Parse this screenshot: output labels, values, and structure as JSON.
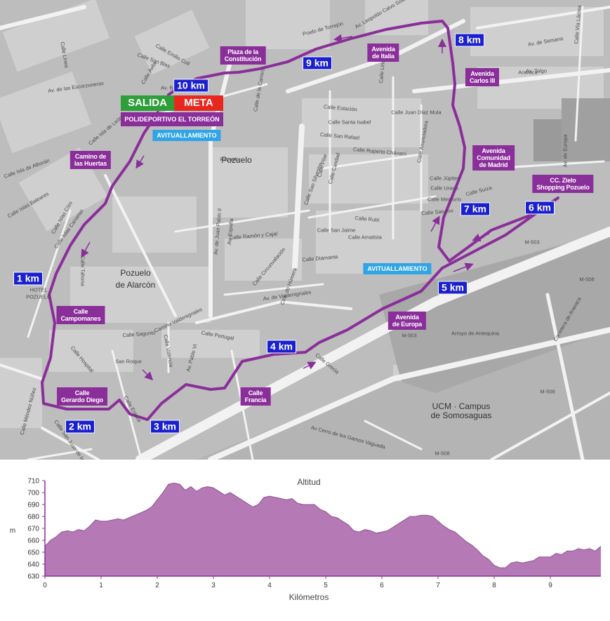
{
  "start": {
    "salida": "SALIDA",
    "meta": "META",
    "venue": "POLIDEPORTIVO EL TORREÓN"
  },
  "aid_stations": [
    {
      "id": "aid1",
      "label": "AVITUALLAMIENTO"
    },
    {
      "id": "aid2",
      "label": "AVITUALLAMIENTO"
    }
  ],
  "km_markers": [
    "1 km",
    "2 km",
    "3 km",
    "4 km",
    "5 km",
    "6 km",
    "7 km",
    "8 km",
    "9 km",
    "10 km"
  ],
  "callouts": [
    {
      "l1": "Camino de",
      "l2": "las Huertas"
    },
    {
      "l1": "Calle",
      "l2": "Campomanes"
    },
    {
      "l1": "Calle",
      "l2": "Gerardo Diego"
    },
    {
      "l1": "Calle",
      "l2": "Francia"
    },
    {
      "l1": "Avenida",
      "l2": "de Europa"
    },
    {
      "l1": "CC. Zielo",
      "l2": "Shopping Pozuelo"
    },
    {
      "l1": "Avenida",
      "l2": "Comunidad",
      "l3": "de Madrid"
    },
    {
      "l1": "Avenida",
      "l2": "Carlos III"
    },
    {
      "l1": "Avenida",
      "l2": "de Italia"
    },
    {
      "l1": "Plaza de la",
      "l2": "Constitución"
    }
  ],
  "places": [
    {
      "text": "Pozuelo"
    },
    {
      "text": "Pozuelo"
    },
    {
      "text": "de Alarcón"
    },
    {
      "text": "UCM · Campus"
    },
    {
      "text": "de Somosaguas"
    },
    {
      "text": "HOTEL"
    },
    {
      "text": "POZUELO"
    }
  ],
  "streets": [
    "Calle Emilio Coll",
    "Calle San Blas",
    "Av. de las Escorzoneras",
    "Calle Linea",
    "Calle Isla de León",
    "Calle Isla de Alborán",
    "Calle Islas Baleares",
    "Calle Islas Cíes",
    "Calle Islas Canarias",
    "Calle Tahona",
    "Calle Hospital",
    "San Roque",
    "Calle Méndez Núñez",
    "Calle San Juan de la Cruz",
    "Calle Enlace",
    "Calle Valencia",
    "Av. Pablo VI",
    "Calle Portugal",
    "Av. de Juan Pablo II",
    "Av. España",
    "Calle Ramón y Cajal",
    "Calle Circunvalación",
    "Calle Sagunto",
    "Camino Valdenigriales",
    "Av. de Valdenigriales",
    "Ctra. de Húmera",
    "Calle San Silvestre",
    "Calle Estación",
    "Calle Santa Isabel",
    "Calle San Rafael",
    "Calle Ruperto Chávarri",
    "Calle Anunciadora",
    "Calle Saturno",
    "Calle Rubí",
    "Calle Amatista",
    "Calle Diamante",
    "Calle San Jaime",
    "Calle Juan Díaz Mula",
    "Calle Júpiter",
    "Calle Urano",
    "Calle Mercurio",
    "Calle Suiza",
    "Av. Talgo",
    "Aravaca",
    "Av. de Europa",
    "Calle Grecia",
    "Arroyo de Antequina",
    "Carretera de Aravaca",
    "Av Cerro de los Gamos Vaguada",
    "Calle de la Carrera",
    "Prado de Torrejón",
    "Av. Leopoldo Calvo Sotelo-Bustelo",
    "Calle Lirio",
    "Av. Bularas",
    "Calle Ávila",
    "Calle Pilar",
    "Calle Candad",
    "Av. de Semana",
    "Calle Vía Láctea",
    "M-503",
    "M-508",
    "M-508",
    "M-508",
    "M-503",
    "Pozuelo"
  ],
  "elevation_chart": {
    "title": "Altitud",
    "xlabel": "Kilómetros",
    "ylabel": "m",
    "y_ticks": [
      630,
      640,
      650,
      660,
      670,
      680,
      690,
      700,
      710
    ],
    "x_ticks": [
      0,
      1,
      2,
      3,
      4,
      5,
      6,
      7,
      8,
      9
    ]
  },
  "chart_data": {
    "type": "area",
    "title": "Altitud",
    "xlabel": "Kilómetros",
    "ylabel": "m",
    "xlim": [
      0,
      9.9
    ],
    "ylim": [
      630,
      710
    ],
    "grid": false,
    "legend": "none",
    "fill_color": "#b57ab5",
    "series": [
      {
        "x": [
          0,
          0.1,
          0.2,
          0.3,
          0.4,
          0.5,
          0.6,
          0.7,
          0.8,
          0.9,
          1.0,
          1.1,
          1.2,
          1.3,
          1.4,
          1.5,
          1.6,
          1.7,
          1.8,
          1.9,
          2.0,
          2.1,
          2.2,
          2.3,
          2.4,
          2.5,
          2.6,
          2.7,
          2.8,
          2.9,
          3.0,
          3.1,
          3.2,
          3.3,
          3.4,
          3.5,
          3.6,
          3.7,
          3.8,
          3.9,
          4.0,
          4.1,
          4.2,
          4.3,
          4.4,
          4.5,
          4.6,
          4.7,
          4.8,
          4.9,
          5.0,
          5.1,
          5.2,
          5.3,
          5.4,
          5.5,
          5.6,
          5.7,
          5.8,
          5.9,
          6.0,
          6.1,
          6.2,
          6.3,
          6.4,
          6.5,
          6.6,
          6.7,
          6.8,
          6.9,
          7.0,
          7.1,
          7.2,
          7.3,
          7.4,
          7.5,
          7.6,
          7.7,
          7.8,
          7.9,
          8.0,
          8.1,
          8.2,
          8.3,
          8.4,
          8.5,
          8.6,
          8.7,
          8.8,
          8.9,
          9.0,
          9.1,
          9.2,
          9.3,
          9.4,
          9.5,
          9.6,
          9.7,
          9.8,
          9.9
        ],
        "y": [
          655,
          660,
          663,
          667,
          668,
          667,
          669,
          668,
          672,
          677,
          676,
          676,
          677,
          678,
          677,
          679,
          681,
          683,
          685,
          688,
          694,
          700,
          707,
          708,
          707,
          702,
          705,
          701,
          704,
          705,
          704,
          701,
          698,
          700,
          697,
          694,
          691,
          688,
          690,
          696,
          697,
          696,
          695,
          694,
          695,
          691,
          690,
          690,
          690,
          686,
          684,
          680,
          679,
          676,
          673,
          668,
          667,
          669,
          668,
          666,
          667,
          668,
          671,
          674,
          677,
          680,
          680,
          681,
          681,
          680,
          676,
          672,
          669,
          667,
          663,
          659,
          656,
          652,
          647,
          644,
          639,
          637,
          637,
          641,
          642,
          641,
          642,
          643,
          646,
          646,
          646,
          649,
          648,
          651,
          651,
          653,
          652,
          653,
          651,
          655
        ]
      }
    ]
  }
}
